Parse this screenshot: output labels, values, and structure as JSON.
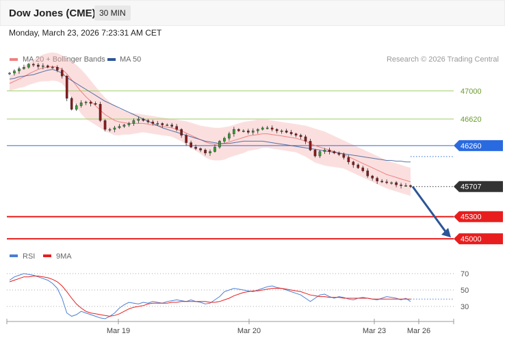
{
  "header": {
    "title": "Dow Jones (CME)",
    "timeframe": "30 MIN",
    "datetime": "Monday, March 23, 2026 7:23:31 AM CET"
  },
  "legend": {
    "ma20": "MA 20 + Bollinger Bands",
    "ma50": "MA 50",
    "rsi": "RSI",
    "ma9": "9MA",
    "credit": "Research © 2026 Trading Central"
  },
  "colors": {
    "bollinger": "#f6b9b9",
    "ma20": "#f08080",
    "ma50": "#2c5596",
    "pivot": "#2a6ae0",
    "support": "#e81e1e",
    "resistance": "#9ccc65",
    "current": "#333333",
    "rsi": "#4a7fd4",
    "rsi_ma": "#e81e1e"
  },
  "chart_data": [
    {
      "type": "line",
      "name": "price",
      "ylim": [
        44900,
        47350
      ],
      "x_ticks": [
        "Mar 19",
        "Mar 20",
        "Mar 23",
        "Mar 26"
      ],
      "levels": [
        {
          "label": "47000",
          "value": 47000,
          "kind": "resistance"
        },
        {
          "label": "46620",
          "value": 46620,
          "kind": "resistance"
        },
        {
          "label": "46260",
          "value": 46260,
          "kind": "pivot"
        },
        {
          "label": "45707",
          "value": 45707,
          "kind": "current"
        },
        {
          "label": "45300",
          "value": 45300,
          "kind": "support"
        },
        {
          "label": "45000",
          "value": 45000,
          "kind": "support"
        }
      ],
      "close": [
        47240,
        47270,
        47300,
        47320,
        47360,
        47350,
        47330,
        47340,
        47320,
        47320,
        47280,
        47200,
        46900,
        46750,
        46800,
        46840,
        46850,
        46830,
        46820,
        46600,
        46480,
        46480,
        46500,
        46520,
        46540,
        46560,
        46600,
        46620,
        46600,
        46580,
        46560,
        46560,
        46540,
        46540,
        46520,
        46480,
        46400,
        46300,
        46240,
        46220,
        46200,
        46160,
        46180,
        46240,
        46320,
        46360,
        46420,
        46480,
        46460,
        46460,
        46440,
        46460,
        46480,
        46500,
        46500,
        46480,
        46460,
        46460,
        46440,
        46420,
        46400,
        46380,
        46320,
        46200,
        46120,
        46180,
        46200,
        46180,
        46160,
        46140,
        46100,
        46040,
        46000,
        45960,
        45920,
        45850,
        45820,
        45780,
        45770,
        45760,
        45760,
        45730,
        45720,
        45720,
        45707
      ],
      "ma20": [
        47100,
        47130,
        47160,
        47190,
        47230,
        47260,
        47290,
        47310,
        47320,
        47330,
        47320,
        47290,
        47230,
        47150,
        47070,
        46990,
        46920,
        46860,
        46800,
        46740,
        46680,
        46640,
        46600,
        46580,
        46570,
        46560,
        46560,
        46560,
        46560,
        46550,
        46540,
        46530,
        46520,
        46510,
        46500,
        46480,
        46460,
        46430,
        46400,
        46370,
        46340,
        46310,
        46290,
        46280,
        46280,
        46290,
        46310,
        46330,
        46350,
        46370,
        46390,
        46400,
        46410,
        46420,
        46420,
        46410,
        46400,
        46390,
        46380,
        46370,
        46360,
        46340,
        46320,
        46290,
        46260,
        46240,
        46220,
        46200,
        46180,
        46160,
        46140,
        46110,
        46080,
        46050,
        46020,
        45990,
        45960,
        45930,
        45900,
        45870,
        45850,
        45830,
        45810,
        45790,
        45770
      ],
      "ma50": [
        47160,
        47170,
        47190,
        47200,
        47210,
        47220,
        47240,
        47260,
        47280,
        47290,
        47270,
        47240,
        47180,
        47140,
        47100,
        47060,
        47020,
        46980,
        46940,
        46900,
        46860,
        46830,
        46800,
        46770,
        46740,
        46710,
        46680,
        46650,
        46620,
        46590,
        46560,
        46530,
        46500,
        46480,
        46460,
        46440,
        46420,
        46400,
        46380,
        46360,
        46340,
        46320,
        46310,
        46300,
        46290,
        46290,
        46290,
        46300,
        46310,
        46320,
        46320,
        46320,
        46320,
        46320,
        46310,
        46300,
        46290,
        46280,
        46270,
        46260,
        46250,
        46240,
        46230,
        46220,
        46210,
        46200,
        46190,
        46180,
        46170,
        46160,
        46150,
        46140,
        46130,
        46120,
        46110,
        46100,
        46090,
        46080,
        46070,
        46060,
        46060,
        46050,
        46050,
        46040,
        46040
      ],
      "bb_upper": [
        47200,
        47240,
        47280,
        47330,
        47380,
        47420,
        47460,
        47490,
        47510,
        47520,
        47510,
        47480,
        47440,
        47400,
        47350,
        47290,
        47220,
        47140,
        47060,
        46980,
        46910,
        46850,
        46800,
        46760,
        46730,
        46710,
        46700,
        46690,
        46680,
        46670,
        46660,
        46650,
        46640,
        46630,
        46620,
        46610,
        46600,
        46590,
        46570,
        46550,
        46530,
        46520,
        46510,
        46500,
        46500,
        46510,
        46520,
        46540,
        46560,
        46580,
        46590,
        46600,
        46610,
        46610,
        46610,
        46600,
        46590,
        46580,
        46570,
        46560,
        46550,
        46540,
        46530,
        46510,
        46490,
        46470,
        46450,
        46420,
        46390,
        46360,
        46330,
        46300,
        46270,
        46240,
        46210,
        46180,
        46150,
        46120,
        46090,
        46060,
        46040,
        46020,
        46000,
        45980,
        45960
      ],
      "bb_lower": [
        47000,
        47020,
        47040,
        47050,
        47080,
        47100,
        47120,
        47130,
        47130,
        47140,
        47130,
        47100,
        47020,
        46900,
        46790,
        46690,
        46620,
        46580,
        46540,
        46500,
        46450,
        46430,
        46400,
        46400,
        46410,
        46410,
        46420,
        46430,
        46440,
        46430,
        46420,
        46410,
        46400,
        46390,
        46380,
        46350,
        46320,
        46270,
        46230,
        46190,
        46150,
        46100,
        46070,
        46060,
        46060,
        46070,
        46100,
        46120,
        46140,
        46160,
        46190,
        46200,
        46210,
        46230,
        46230,
        46220,
        46210,
        46200,
        46190,
        46180,
        46170,
        46140,
        46110,
        46070,
        46030,
        46010,
        45990,
        45980,
        45970,
        45960,
        45950,
        45920,
        45890,
        45860,
        45830,
        45800,
        45770,
        45740,
        45710,
        45680,
        45660,
        45640,
        45620,
        45600,
        45580
      ],
      "projection": {
        "from": 45707,
        "to": 45000
      }
    },
    {
      "type": "line",
      "name": "RSI panel",
      "ylim": [
        20,
        80
      ],
      "y_ticks": [
        70,
        50,
        30
      ],
      "rsi": [
        62,
        66,
        68,
        70,
        69,
        68,
        66,
        64,
        62,
        58,
        52,
        40,
        22,
        18,
        20,
        24,
        22,
        20,
        18,
        16,
        15,
        18,
        22,
        28,
        32,
        35,
        34,
        33,
        35,
        34,
        36,
        35,
        34,
        36,
        37,
        38,
        37,
        36,
        38,
        36,
        35,
        33,
        34,
        38,
        42,
        48,
        50,
        52,
        51,
        50,
        49,
        48,
        50,
        52,
        54,
        55,
        53,
        52,
        50,
        48,
        46,
        44,
        40,
        36,
        40,
        44,
        45,
        42,
        40,
        42,
        41,
        39,
        38,
        40,
        41,
        40,
        39,
        38,
        40,
        42,
        41,
        40,
        38,
        40,
        36
      ],
      "ma9": [
        60,
        62,
        64,
        66,
        66,
        67,
        67,
        66,
        65,
        63,
        60,
        55,
        48,
        40,
        33,
        28,
        24,
        22,
        21,
        20,
        19,
        18,
        19,
        21,
        24,
        27,
        29,
        30,
        31,
        33,
        34,
        34,
        34,
        34,
        35,
        35,
        36,
        36,
        36,
        36,
        36,
        36,
        35,
        35,
        36,
        38,
        40,
        43,
        45,
        47,
        48,
        49,
        49,
        50,
        51,
        52,
        52,
        52,
        51,
        50,
        49,
        48,
        46,
        44,
        43,
        42,
        42,
        41,
        41,
        41,
        40,
        40,
        40,
        40,
        40,
        40,
        39,
        39,
        39,
        39,
        39,
        39,
        39,
        39,
        39
      ]
    }
  ]
}
